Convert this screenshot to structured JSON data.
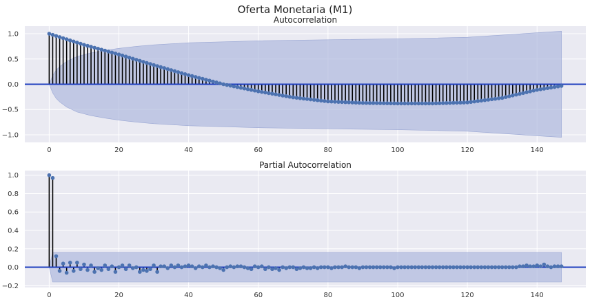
{
  "figure_title": "Oferta Monetaria (M1)",
  "colors": {
    "background": "#eaeaf2",
    "grid": "#ffffff",
    "zero_line": "#1f3fbf",
    "marker": "#4c72b0",
    "band": "#aab5dc",
    "stem": "#000000"
  },
  "chart_data": [
    {
      "type": "stem",
      "title": "Autocorrelation",
      "xlabel": "",
      "ylabel": "",
      "xlim": [
        -7,
        154
      ],
      "ylim": [
        -1.15,
        1.15
      ],
      "xticks": [
        0,
        20,
        40,
        60,
        80,
        100,
        120,
        140
      ],
      "yticks": [
        -1.0,
        -0.5,
        0.0,
        0.5,
        1.0
      ],
      "ytick_labels": [
        "−1.0",
        "−0.5",
        "0.0",
        "0.5",
        "1.0"
      ],
      "grid": true,
      "confidence_band": {
        "x": [
          0,
          1,
          2,
          3,
          5,
          8,
          12,
          16,
          20,
          25,
          30,
          40,
          50,
          60,
          80,
          100,
          120,
          147
        ],
        "upper": [
          0.0,
          0.17,
          0.28,
          0.35,
          0.45,
          0.55,
          0.62,
          0.67,
          0.71,
          0.75,
          0.78,
          0.82,
          0.84,
          0.86,
          0.88,
          0.9,
          0.93,
          1.05
        ],
        "lower": [
          0.0,
          -0.17,
          -0.28,
          -0.35,
          -0.45,
          -0.55,
          -0.62,
          -0.67,
          -0.71,
          -0.75,
          -0.78,
          -0.82,
          -0.84,
          -0.86,
          -0.88,
          -0.9,
          -0.93,
          -1.05
        ]
      },
      "series": [
        {
          "x": [
            0,
            1,
            2,
            3,
            4,
            5,
            6,
            7,
            8,
            9,
            10,
            11,
            12,
            13,
            14,
            15,
            16,
            17,
            18,
            19,
            20,
            21,
            22,
            23,
            24,
            25,
            26,
            27,
            28,
            29,
            30,
            31,
            32,
            33,
            34,
            35,
            36,
            37,
            38,
            39,
            40,
            41,
            42,
            43,
            44,
            45,
            46,
            47,
            48,
            49,
            50,
            51,
            52,
            53,
            54,
            55,
            56,
            57,
            58,
            59,
            60,
            61,
            62,
            63,
            64,
            65,
            66,
            67,
            68,
            69,
            70,
            71,
            72,
            73,
            74,
            75,
            76,
            77,
            78,
            79,
            80,
            81,
            82,
            83,
            84,
            85,
            86,
            87,
            88,
            89,
            90,
            91,
            92,
            93,
            94,
            95,
            96,
            97,
            98,
            99,
            100,
            101,
            102,
            103,
            104,
            105,
            106,
            107,
            108,
            109,
            110,
            111,
            112,
            113,
            114,
            115,
            116,
            117,
            118,
            119,
            120,
            121,
            122,
            123,
            124,
            125,
            126,
            127,
            128,
            129,
            130,
            131,
            132,
            133,
            134,
            135,
            136,
            137,
            138,
            139,
            140,
            141,
            142,
            143,
            144,
            145,
            146,
            147
          ],
          "values": [
            1.0,
            0.978,
            0.956,
            0.934,
            0.912,
            0.89,
            0.868,
            0.846,
            0.824,
            0.802,
            0.78,
            0.761,
            0.742,
            0.723,
            0.704,
            0.685,
            0.666,
            0.647,
            0.628,
            0.609,
            0.59,
            0.569,
            0.548,
            0.527,
            0.506,
            0.485,
            0.464,
            0.443,
            0.422,
            0.401,
            0.38,
            0.36,
            0.34,
            0.32,
            0.3,
            0.28,
            0.26,
            0.24,
            0.22,
            0.2,
            0.18,
            0.162,
            0.144,
            0.126,
            0.108,
            0.09,
            0.072,
            0.054,
            0.036,
            0.018,
            0.0,
            -0.014,
            -0.028,
            -0.042,
            -0.056,
            -0.07,
            -0.084,
            -0.098,
            -0.112,
            -0.126,
            -0.14,
            -0.152,
            -0.164,
            -0.176,
            -0.188,
            -0.2,
            -0.212,
            -0.224,
            -0.236,
            -0.248,
            -0.26,
            -0.268,
            -0.276,
            -0.284,
            -0.292,
            -0.3,
            -0.308,
            -0.316,
            -0.324,
            -0.332,
            -0.34,
            -0.343,
            -0.346,
            -0.349,
            -0.352,
            -0.355,
            -0.358,
            -0.361,
            -0.364,
            -0.367,
            -0.37,
            -0.371,
            -0.372,
            -0.373,
            -0.374,
            -0.375,
            -0.376,
            -0.377,
            -0.378,
            -0.379,
            -0.38,
            -0.38,
            -0.38,
            -0.38,
            -0.38,
            -0.38,
            -0.38,
            -0.38,
            -0.38,
            -0.38,
            -0.38,
            -0.378,
            -0.376,
            -0.374,
            -0.372,
            -0.37,
            -0.368,
            -0.366,
            -0.364,
            -0.362,
            -0.36,
            -0.351,
            -0.342,
            -0.333,
            -0.324,
            -0.315,
            -0.306,
            -0.297,
            -0.288,
            -0.279,
            -0.27,
            -0.254,
            -0.238,
            -0.222,
            -0.206,
            -0.19,
            -0.174,
            -0.158,
            -0.142,
            -0.126,
            -0.11,
            -0.099,
            -0.088,
            -0.077,
            -0.066,
            -0.055,
            -0.044,
            -0.033
          ]
        }
      ]
    },
    {
      "type": "stem",
      "title": "Partial Autocorrelation",
      "xlabel": "",
      "ylabel": "",
      "xlim": [
        -7,
        154
      ],
      "ylim": [
        -0.22,
        1.05
      ],
      "xticks": [
        0,
        20,
        40,
        60,
        80,
        100,
        120,
        140
      ],
      "yticks": [
        -0.2,
        0.0,
        0.2,
        0.4,
        0.6,
        0.8,
        1.0
      ],
      "ytick_labels": [
        "−0.2",
        "0.0",
        "0.2",
        "0.4",
        "0.6",
        "0.8",
        "1.0"
      ],
      "grid": true,
      "confidence_band": {
        "x": [
          0,
          1,
          2,
          147
        ],
        "upper": [
          0.0,
          0.16,
          0.16,
          0.16
        ],
        "lower": [
          0.0,
          -0.16,
          -0.16,
          -0.16
        ]
      },
      "series": [
        {
          "x": [
            0,
            1,
            2,
            3,
            4,
            5,
            6,
            7,
            8,
            9,
            10,
            11,
            12,
            13,
            14,
            15,
            16,
            17,
            18,
            19,
            20,
            21,
            22,
            23,
            24,
            25,
            26,
            27,
            28,
            29,
            30,
            31,
            32,
            33,
            34,
            35,
            36,
            37,
            38,
            39,
            40,
            41,
            42,
            43,
            44,
            45,
            46,
            47,
            48,
            49,
            50,
            51,
            52,
            53,
            54,
            55,
            56,
            57,
            58,
            59,
            60,
            61,
            62,
            63,
            64,
            65,
            66,
            67,
            68,
            69,
            70,
            71,
            72,
            73,
            74,
            75,
            76,
            77,
            78,
            79,
            80,
            81,
            82,
            83,
            84,
            85,
            86,
            87,
            88,
            89,
            90,
            91,
            92,
            93,
            94,
            95,
            96,
            97,
            98,
            99,
            100,
            101,
            102,
            103,
            104,
            105,
            106,
            107,
            108,
            109,
            110,
            111,
            112,
            113,
            114,
            115,
            116,
            117,
            118,
            119,
            120,
            121,
            122,
            123,
            124,
            125,
            126,
            127,
            128,
            129,
            130,
            131,
            132,
            133,
            134,
            135,
            136,
            137,
            138,
            139,
            140,
            141,
            142,
            143,
            144,
            145,
            146,
            147
          ],
          "values": [
            1.0,
            0.97,
            0.12,
            -0.04,
            0.04,
            -0.06,
            0.05,
            -0.04,
            0.05,
            -0.02,
            0.03,
            -0.03,
            0.02,
            -0.05,
            -0.01,
            -0.03,
            0.02,
            -0.02,
            0.01,
            -0.05,
            0.0,
            0.02,
            -0.02,
            0.02,
            -0.01,
            0.0,
            -0.05,
            -0.03,
            -0.04,
            -0.02,
            0.02,
            -0.05,
            0.01,
            0.01,
            -0.01,
            0.02,
            0.0,
            0.02,
            0.0,
            0.01,
            0.02,
            0.01,
            -0.01,
            0.01,
            0.0,
            0.02,
            0.0,
            0.01,
            0.0,
            -0.01,
            -0.03,
            0.0,
            0.01,
            0.0,
            0.01,
            0.01,
            0.0,
            -0.01,
            -0.02,
            0.01,
            0.0,
            0.01,
            -0.02,
            0.0,
            -0.02,
            -0.01,
            -0.03,
            0.0,
            -0.01,
            0.0,
            0.0,
            -0.02,
            -0.01,
            0.0,
            -0.01,
            -0.01,
            0.0,
            -0.01,
            0.0,
            0.0,
            0.0,
            -0.01,
            0.0,
            0.0,
            0.0,
            0.01,
            0.0,
            0.0,
            0.0,
            -0.01,
            0.0,
            0.0,
            0.0,
            0.0,
            0.0,
            0.0,
            0.0,
            0.0,
            0.0,
            -0.01,
            0.0,
            0.0,
            0.0,
            0.0,
            0.0,
            0.0,
            0.0,
            0.0,
            0.0,
            0.0,
            0.0,
            0.0,
            0.0,
            0.0,
            0.0,
            0.0,
            0.0,
            0.0,
            0.0,
            0.0,
            0.0,
            0.0,
            0.0,
            0.0,
            0.0,
            0.0,
            0.0,
            0.0,
            0.0,
            0.0,
            0.0,
            0.0,
            0.0,
            0.0,
            0.0,
            0.01,
            0.01,
            0.02,
            0.01,
            0.01,
            0.02,
            0.01,
            0.03,
            0.01,
            0.0,
            0.01,
            0.01,
            0.01
          ]
        }
      ]
    }
  ]
}
